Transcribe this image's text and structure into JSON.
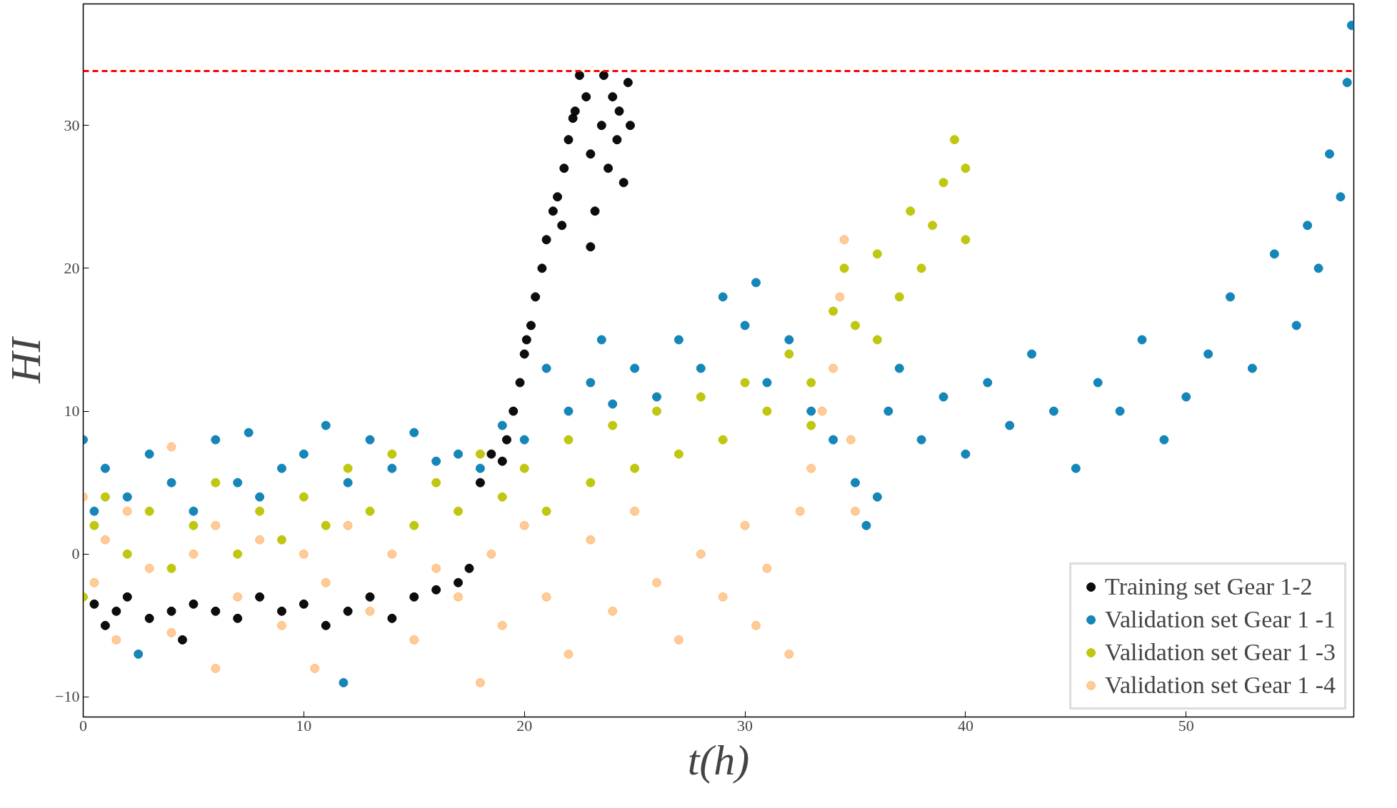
{
  "chart_data": {
    "type": "scatter",
    "xlabel": "t(h)",
    "ylabel": "HI",
    "xlim": [
      0,
      57.6
    ],
    "ylim": [
      -11.4,
      38.5
    ],
    "xticks": [
      0,
      10,
      20,
      30,
      40,
      50
    ],
    "yticks": [
      -10,
      0,
      10,
      20,
      30
    ],
    "grid": false,
    "legend": "bottom right",
    "marker": "circle",
    "ref_lines": [
      {
        "axis": "y",
        "value": 33.8,
        "color": "#ff0000",
        "line_style": "dashed"
      }
    ],
    "series": [
      {
        "name": "Training set Gear 1-2",
        "color": "#000000",
        "x": [
          0.5,
          1,
          1.5,
          2,
          3,
          4,
          4.5,
          5,
          6,
          7,
          8,
          9,
          10,
          11,
          12,
          13,
          14,
          15,
          16,
          17,
          17.5,
          18,
          18.5,
          19,
          19.2,
          19.5,
          19.8,
          20,
          20.3,
          20.5,
          20.8,
          21,
          21.3,
          21.5,
          21.8,
          22,
          22.3,
          22.5,
          22.8,
          23,
          23.2,
          23.5,
          23.8,
          24,
          24.2,
          24.5,
          24.7,
          24.8,
          23,
          22.2,
          23.6,
          24.3,
          21.7,
          20.1
        ],
        "values": [
          -3.5,
          -5,
          -4,
          -3,
          -4.5,
          -4,
          -6,
          -3.5,
          -4,
          -4.5,
          -3,
          -4,
          -3.5,
          -5,
          -4,
          -3,
          -4.5,
          -3,
          -2.5,
          -2,
          -1,
          5,
          7,
          6.5,
          8,
          10,
          12,
          14,
          16,
          18,
          20,
          22,
          24,
          25,
          27,
          29,
          31,
          33.5,
          32,
          28,
          24,
          30,
          27,
          32,
          29,
          26,
          33,
          30,
          21.5,
          30.5,
          33.5,
          31,
          23,
          15
        ]
      },
      {
        "name": "Validation set Gear 1 -1",
        "color": "#0a7fb5",
        "x": [
          0,
          0.5,
          1,
          2,
          2.5,
          3,
          4,
          5,
          6,
          7,
          7.5,
          8,
          9,
          10,
          11,
          11.8,
          12,
          13,
          14,
          15,
          16,
          17,
          18,
          19,
          20,
          21,
          22,
          23,
          23.5,
          24,
          25,
          26,
          27,
          28,
          29,
          30,
          30.5,
          31,
          32,
          33,
          34,
          35,
          35.5,
          36,
          36.5,
          37,
          38,
          39,
          40,
          41,
          42,
          43,
          44,
          45,
          46,
          47,
          48,
          49,
          50,
          51,
          52,
          53,
          54,
          55,
          55.5,
          56,
          56.5,
          57,
          57.3,
          57.5
        ],
        "values": [
          8,
          3,
          6,
          4,
          -7,
          7,
          5,
          3,
          8,
          5,
          8.5,
          4,
          6,
          7,
          9,
          -9,
          5,
          8,
          6,
          8.5,
          6.5,
          7,
          6,
          9,
          8,
          13,
          10,
          12,
          15,
          10.5,
          13,
          11,
          15,
          13,
          18,
          16,
          19,
          12,
          15,
          10,
          8,
          5,
          2,
          4,
          10,
          13,
          8,
          11,
          7,
          12,
          9,
          14,
          10,
          6,
          12,
          10,
          15,
          8,
          11,
          14,
          18,
          13,
          21,
          16,
          23,
          20,
          28,
          25,
          33,
          37
        ]
      },
      {
        "name": "Validation set Gear 1 -3",
        "color": "#bcc403",
        "x": [
          0,
          0.5,
          1,
          2,
          3,
          4,
          5,
          6,
          7,
          8,
          9,
          10,
          11,
          12,
          13,
          14,
          15,
          16,
          17,
          18,
          19,
          20,
          21,
          22,
          23,
          24,
          25,
          26,
          27,
          28,
          29,
          30,
          31,
          32,
          33,
          34,
          34.5,
          35,
          36,
          37,
          37.5,
          38,
          38.5,
          39,
          39.5,
          40,
          40,
          36,
          33
        ],
        "values": [
          -3,
          2,
          4,
          0,
          3,
          -1,
          2,
          5,
          0,
          3,
          1,
          4,
          2,
          6,
          3,
          7,
          2,
          5,
          3,
          7,
          4,
          6,
          3,
          8,
          5,
          9,
          6,
          10,
          7,
          11,
          8,
          12,
          10,
          14,
          12,
          17,
          20,
          16,
          21,
          18,
          24,
          20,
          23,
          26,
          29,
          27,
          22,
          15,
          9
        ]
      },
      {
        "name": "Validation set Gear 1 -4",
        "color": "#ff8c1a",
        "x": [
          0,
          0.5,
          1,
          1.5,
          2,
          3,
          4,
          4,
          5,
          6,
          6,
          7,
          8,
          9,
          10,
          10.5,
          11,
          12,
          13,
          14,
          15,
          16,
          17,
          18,
          18.5,
          19,
          20,
          21,
          22,
          23,
          24,
          25,
          26,
          27,
          28,
          29,
          30,
          30.5,
          31,
          32,
          32.5,
          33,
          33.5,
          34,
          34.3,
          34.5,
          34.8,
          35
        ],
        "values": [
          4,
          -2,
          1,
          -6,
          3,
          -1,
          7.5,
          -5.5,
          0,
          -8,
          2,
          -3,
          1,
          -5,
          0,
          -8,
          -2,
          2,
          -4,
          0,
          -6,
          -1,
          -3,
          -9,
          0,
          -5,
          2,
          -3,
          -7,
          1,
          -4,
          3,
          -2,
          -6,
          0,
          -3,
          2,
          -5,
          -1,
          -7,
          3,
          6,
          10,
          13,
          18,
          22,
          8,
          3
        ]
      }
    ]
  }
}
